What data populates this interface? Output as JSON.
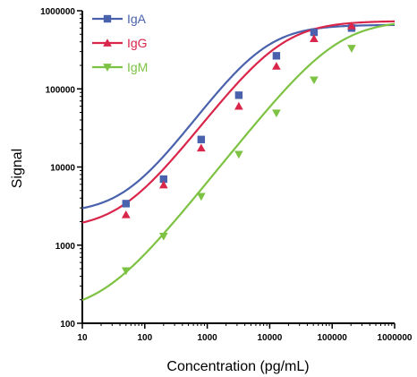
{
  "chart_data": {
    "type": "line",
    "xlabel": "Concentration (pg/mL)",
    "ylabel": "Signal",
    "xscale": "log",
    "yscale": "log",
    "xlim": [
      10,
      1000000
    ],
    "ylim": [
      100,
      1000000
    ],
    "x_ticks": [
      "10",
      "100",
      "1000",
      "10000",
      "100000",
      "1000000"
    ],
    "y_ticks": [
      "100",
      "1000",
      "10000",
      "100000",
      "1000000"
    ],
    "grid": false,
    "legend_position": "top-left",
    "series": [
      {
        "name": "IgA",
        "color": "#4a62ad",
        "marker": "square",
        "x": [
          50,
          200,
          800,
          3200,
          12800,
          51200,
          204800
        ],
        "y": [
          3400,
          7000,
          22500,
          83000,
          265000,
          530000,
          600000
        ],
        "fit": {
          "bottom": 2550,
          "top": 660000,
          "ec50": 8000,
          "hill": 1.1
        }
      },
      {
        "name": "IgG",
        "color": "#d9264a",
        "marker": "triangle-up",
        "x": [
          50,
          200,
          800,
          3200,
          12800,
          51200,
          204800
        ],
        "y": [
          2450,
          5900,
          17500,
          60000,
          195000,
          440000,
          640000
        ],
        "fit": {
          "bottom": 1600,
          "top": 740000,
          "ec50": 15000,
          "hill": 1.05
        }
      },
      {
        "name": "IgM",
        "color": "#7dc242",
        "marker": "triangle-down",
        "x": [
          50,
          200,
          800,
          3200,
          12800,
          51200,
          204800
        ],
        "y": [
          470,
          1300,
          4200,
          14500,
          49000,
          130000,
          330000
        ],
        "fit": {
          "bottom": 135,
          "top": 760000,
          "ec50": 120000,
          "hill": 1.0
        }
      }
    ]
  }
}
